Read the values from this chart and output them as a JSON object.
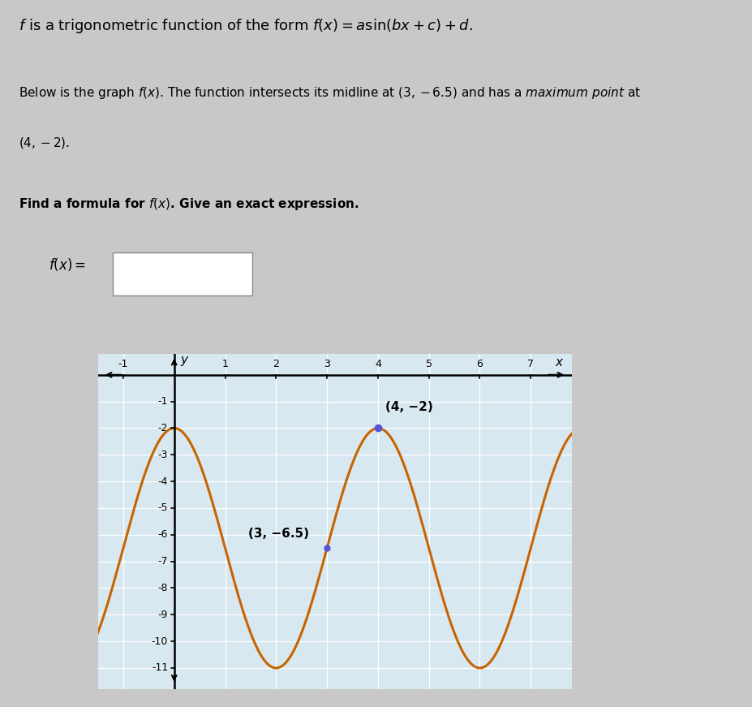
{
  "amplitude": 4.5,
  "midline": -6.5,
  "period": 4.0,
  "x_min": -1.5,
  "x_max": 7.8,
  "y_min": -11.8,
  "y_max": 0.8,
  "x_ticks": [
    -1,
    1,
    2,
    3,
    4,
    5,
    6,
    7
  ],
  "y_ticks": [
    -1,
    -2,
    -3,
    -4,
    -5,
    -6,
    -7,
    -8,
    -9,
    -10,
    -11
  ],
  "curve_color": "#C86400",
  "point1_x": 3,
  "point1_y": -6.5,
  "point1_label": "(3, −6.5)",
  "point2_x": 4,
  "point2_y": -2,
  "point2_label": "(4, −2)",
  "point_color": "#5555DD",
  "bg_color": "#D8E8F0",
  "grid_color": "#FFFFFF",
  "outer_bg": "#C8C8C8",
  "font_size_tick": 9,
  "font_size_annot": 11,
  "font_size_title": 13,
  "font_size_body": 11
}
